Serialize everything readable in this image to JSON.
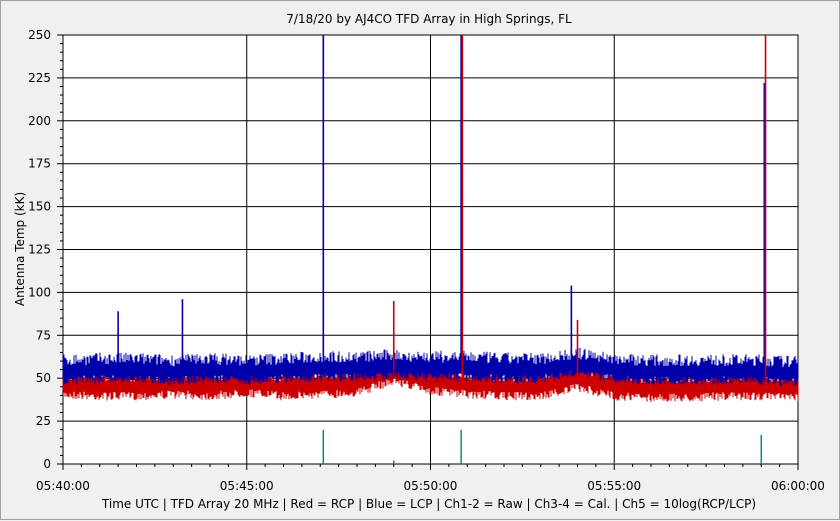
{
  "chart_data": {
    "type": "line",
    "title": "7/18/20  by  AJ4CO TFD Array  in  High Springs, FL",
    "ylabel": "Antenna Temp (kK)",
    "xlabel": "Time UTC | TFD Array 20 MHz | Red = RCP | Blue = LCP | Ch1-2 = Raw | Ch3-4 = Cal. | Ch5 = 10log(RCP/LCP)",
    "ylim": [
      0,
      250
    ],
    "yticks": [
      "0",
      "25",
      "50",
      "75",
      "100",
      "125",
      "150",
      "175",
      "200",
      "225",
      "250"
    ],
    "xlim": [
      "05:40:00",
      "06:00:00"
    ],
    "xticks": [
      "05:40:00",
      "05:45:00",
      "05:50:00",
      "05:55:00",
      "06:00:00"
    ],
    "grid": true,
    "colors": {
      "RCP": "#cc0000",
      "LCP": "#0000aa",
      "Ch5": "#008080"
    },
    "series": [
      {
        "name": "LCP",
        "x": [
          "05:40:00",
          "05:41:00",
          "05:42:00",
          "05:43:00",
          "05:44:00",
          "05:45:00",
          "05:46:00",
          "05:47:00",
          "05:48:00",
          "05:49:00",
          "05:50:00",
          "05:51:00",
          "05:52:00",
          "05:53:00",
          "05:54:00",
          "05:55:00",
          "05:56:00",
          "05:57:00",
          "05:58:00",
          "05:59:00",
          "06:00:00"
        ],
        "values": [
          54,
          55,
          55,
          54,
          55,
          54,
          55,
          56,
          56,
          57,
          56,
          56,
          55,
          55,
          58,
          55,
          54,
          54,
          54,
          54,
          53
        ]
      },
      {
        "name": "RCP",
        "x": [
          "05:40:00",
          "05:41:00",
          "05:42:00",
          "05:43:00",
          "05:44:00",
          "05:45:00",
          "05:46:00",
          "05:47:00",
          "05:48:00",
          "05:49:00",
          "05:50:00",
          "05:51:00",
          "05:52:00",
          "05:53:00",
          "05:54:00",
          "05:55:00",
          "05:56:00",
          "05:57:00",
          "05:58:00",
          "05:59:00",
          "06:00:00"
        ],
        "values": [
          46,
          45,
          45,
          46,
          45,
          47,
          45,
          46,
          47,
          54,
          48,
          46,
          45,
          45,
          50,
          45,
          44,
          44,
          45,
          45,
          44
        ]
      },
      {
        "name": "Ch5",
        "x": [
          "05:40:00",
          "05:47:05",
          "05:49:00",
          "05:50:50",
          "05:55:00",
          "05:59:00"
        ],
        "values": [
          0,
          20,
          2,
          20,
          1,
          17
        ]
      }
    ],
    "spikes": [
      {
        "series": "LCP",
        "x": "05:41:30",
        "value": 89
      },
      {
        "series": "LCP",
        "x": "05:43:15",
        "value": 96
      },
      {
        "series": "LCP",
        "x": "05:47:05",
        "value": 250
      },
      {
        "series": "LCP",
        "x": "05:50:50",
        "value": 250
      },
      {
        "series": "LCP",
        "x": "05:53:50",
        "value": 104
      },
      {
        "series": "LCP",
        "x": "05:59:05",
        "value": 222
      },
      {
        "series": "RCP",
        "x": "05:50:52",
        "value": 250
      },
      {
        "series": "RCP",
        "x": "05:59:07",
        "value": 250
      },
      {
        "series": "RCP",
        "x": "05:49:00",
        "value": 95
      },
      {
        "series": "RCP",
        "x": "05:54:00",
        "value": 84
      }
    ]
  }
}
